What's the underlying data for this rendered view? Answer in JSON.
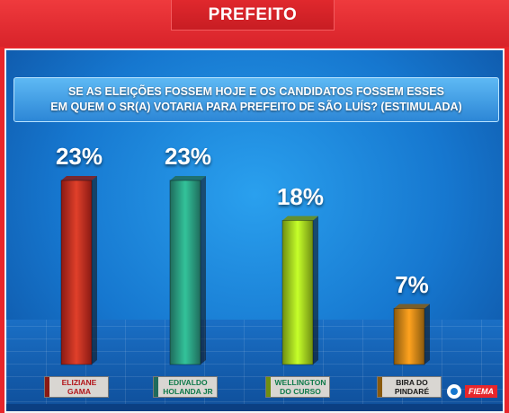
{
  "header": {
    "title": "PREFEITO"
  },
  "question": {
    "line1": "SE AS ELEIÇÕES FOSSEM HOJE E OS CANDIDATOS FOSSEM ESSES",
    "line2": "EM QUEM O SR(A) VOTARIA PARA PREFEITO DE SÃO LUÍS? (ESTIMULADA)"
  },
  "logos": {
    "fiema": "FIEMA",
    "tv": "tv-logo"
  },
  "chart_data": {
    "type": "bar",
    "title": "SE AS ELEIÇÕES FOSSEM HOJE E OS CANDIDATOS FOSSEM ESSES EM QUEM O SR(A) VOTARIA PARA PREFEITO DE SÃO LUÍS? (ESTIMULADA)",
    "categories": [
      [
        "ELIZIANE",
        "GAMA"
      ],
      [
        "EDIVALDO",
        "HOLANDA JR"
      ],
      [
        "WELLINGTON",
        "DO CURSO"
      ],
      [
        "BIRA DO",
        "PINDARÉ"
      ]
    ],
    "values": [
      23,
      23,
      18,
      7
    ],
    "value_labels": [
      "23%",
      "23%",
      "18%",
      "7%"
    ],
    "unit": "%",
    "ylim": [
      0,
      23
    ],
    "colors": [
      "#8a1a14",
      "#1f6b5c",
      "#6f8e12",
      "#8a5a0e"
    ],
    "glow_colors": [
      "#e0402a",
      "#33c39a",
      "#c6ff2a",
      "#ffa21e"
    ],
    "label_text_colors": [
      "#b3161b",
      "#0f7a4a",
      "#0f7a4a",
      "#1a1a1a"
    ],
    "grid": false,
    "legend": "none"
  }
}
